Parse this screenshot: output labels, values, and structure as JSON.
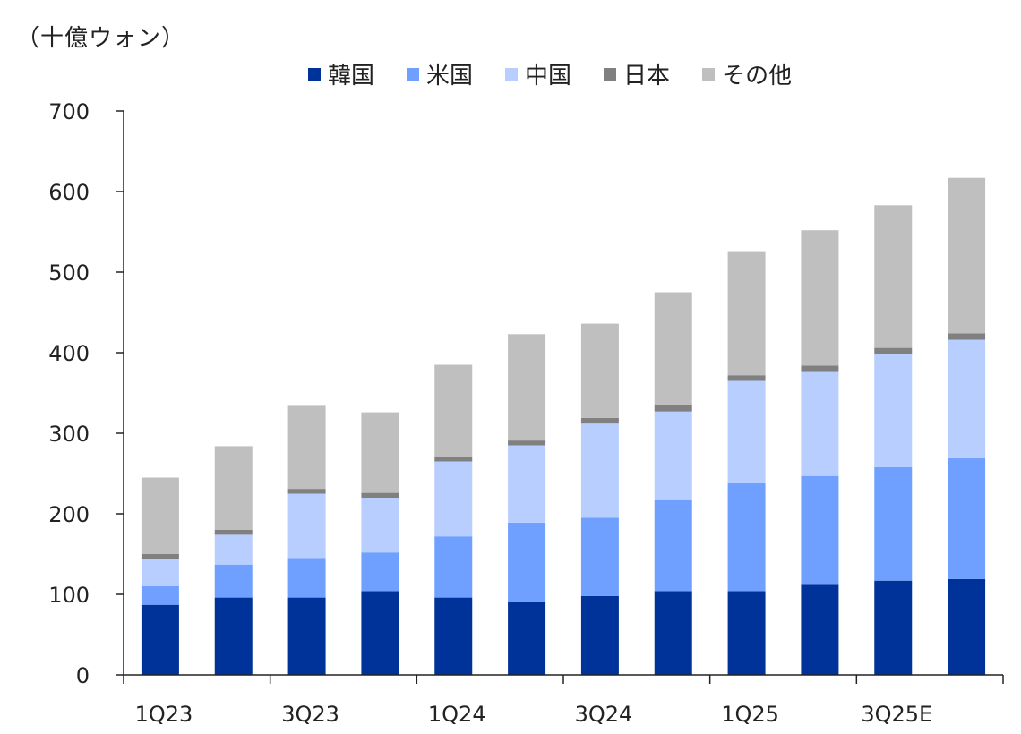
{
  "chart_data": {
    "type": "bar",
    "stacked": true,
    "unit_label": "（十億ウォン）",
    "categories": [
      "1Q23",
      "2Q23",
      "3Q23",
      "4Q23",
      "1Q24",
      "2Q24",
      "3Q24",
      "4Q24",
      "1Q25",
      "2Q25",
      "3Q25E",
      "4Q25E"
    ],
    "x_tick_labels": [
      "1Q23",
      "3Q23",
      "1Q24",
      "3Q24",
      "1Q25",
      "3Q25E"
    ],
    "series": [
      {
        "name": "韓国",
        "color": "#003399",
        "values": [
          87,
          96,
          96,
          104,
          96,
          91,
          98,
          104,
          104,
          113,
          117,
          119
        ]
      },
      {
        "name": "米国",
        "color": "#6fa0ff",
        "values": [
          23,
          41,
          49,
          48,
          76,
          98,
          97,
          113,
          134,
          134,
          141,
          150
        ]
      },
      {
        "name": "中国",
        "color": "#b8ceff",
        "values": [
          34,
          37,
          80,
          68,
          93,
          96,
          117,
          110,
          127,
          129,
          140,
          147
        ]
      },
      {
        "name": "日本",
        "color": "#808080",
        "values": [
          6,
          6,
          6,
          6,
          5,
          6,
          7,
          8,
          7,
          8,
          8,
          8
        ]
      },
      {
        "name": "その他",
        "color": "#bfbfbf",
        "values": [
          95,
          104,
          103,
          100,
          115,
          132,
          117,
          140,
          154,
          168,
          177,
          193
        ]
      }
    ],
    "ylim": [
      0,
      700
    ],
    "yticks": [
      0,
      100,
      200,
      300,
      400,
      500,
      600,
      700
    ],
    "grid": false,
    "legend_position": "top"
  }
}
